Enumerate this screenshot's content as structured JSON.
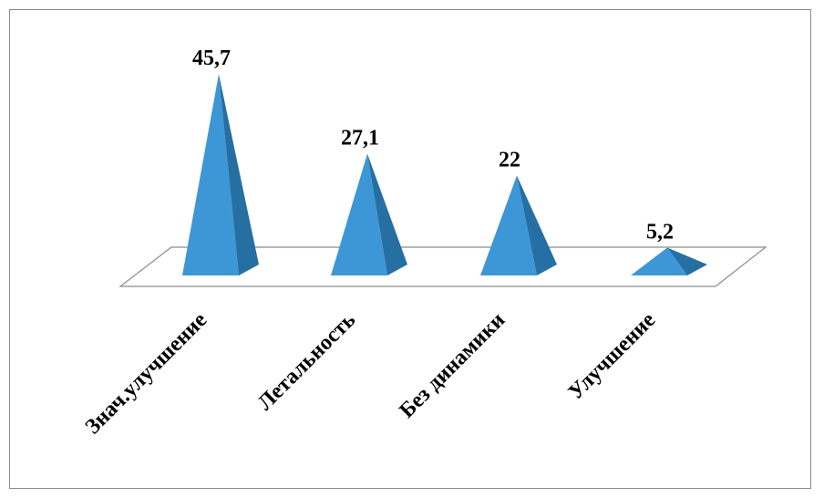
{
  "chart_data": {
    "type": "bar",
    "bar_shape": "pyramid",
    "categories": [
      "Знач.улучшение",
      "Летальность",
      "Без динамики",
      "Улучшение"
    ],
    "values": [
      45.7,
      27.1,
      22,
      5.2
    ],
    "data_labels": [
      "45,7",
      "27,1",
      "22",
      "5,2"
    ],
    "title": "",
    "xlabel": "",
    "ylabel": "",
    "grid": false,
    "legend": "none",
    "colors": {
      "front": "#3d97d6",
      "side": "#266fa3",
      "floor_stroke": "#8c8c8c",
      "border": "#8c8c8c"
    }
  }
}
